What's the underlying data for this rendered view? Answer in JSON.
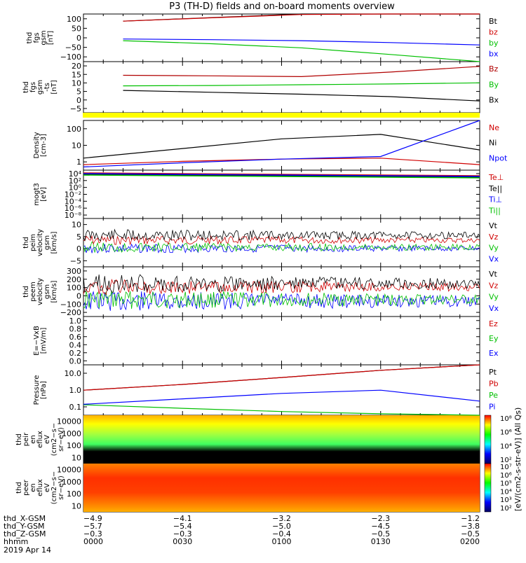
{
  "title": "P3 (TH-D) fields and on-board moments overview",
  "panels": [
    {
      "key": "fgs_gsm",
      "ylabel": [
        "thd",
        "fgs",
        "gsm",
        "[nT]"
      ],
      "yticks": [
        "100",
        "50",
        "0",
        "−50",
        "−100"
      ],
      "legend": [
        {
          "text": "Bt",
          "color": "#000000"
        },
        {
          "text": "bz",
          "color": "#d00000"
        },
        {
          "text": "by",
          "color": "#00c000"
        },
        {
          "text": "bx",
          "color": "#0000ff"
        }
      ]
    },
    {
      "key": "fgs_gse",
      "ylabel": [
        "thd",
        "fgs",
        "gsm",
        "-ts",
        "[nT]"
      ],
      "yticks": [
        "20",
        "15",
        "10",
        "5",
        "0",
        "−5"
      ],
      "legend": [
        {
          "text": "Bz",
          "color": "#b00000"
        },
        {
          "text": "By",
          "color": "#00c000"
        },
        {
          "text": "Bx",
          "color": "#000000"
        }
      ]
    },
    {
      "key": "density",
      "ylabel": [
        "Density",
        "[cm-3]"
      ],
      "yticks": [
        "100",
        "10",
        "1"
      ],
      "legend": [
        {
          "text": "Ne",
          "color": "#d00000"
        },
        {
          "text": "Ni",
          "color": "#000000"
        },
        {
          "text": "Npot",
          "color": "#0000ff"
        }
      ]
    },
    {
      "key": "temp",
      "ylabel": [
        "mogt3",
        "[eV]"
      ],
      "yticks": [
        "10⁴",
        "10²",
        "10⁰",
        "10⁻²",
        "10⁻⁴",
        "10⁻⁶",
        "10⁻⁸"
      ],
      "legend": [
        {
          "text": "Te⊥",
          "color": "#d00000"
        },
        {
          "text": "Te||",
          "color": "#000000"
        },
        {
          "text": "Ti⊥",
          "color": "#0000ff"
        },
        {
          "text": "Ti||",
          "color": "#00c000"
        }
      ]
    },
    {
      "key": "peim_vel",
      "ylabel": [
        "thd",
        "peim",
        "velocity",
        "gsm",
        "[km/s]"
      ],
      "yticks": [
        "10",
        "5",
        "0",
        "−5"
      ],
      "legend": [
        {
          "text": "Vt",
          "color": "#000000"
        },
        {
          "text": "Vz",
          "color": "#d00000"
        },
        {
          "text": "Vy",
          "color": "#00c000"
        },
        {
          "text": "Vx",
          "color": "#0000ff"
        }
      ]
    },
    {
      "key": "peem_vel",
      "ylabel": [
        "thd",
        "peem",
        "velocity",
        "gsm",
        "[km/s]"
      ],
      "yticks": [
        "300",
        "200",
        "100",
        "0",
        "−100",
        "−200"
      ],
      "legend": [
        {
          "text": "Vt",
          "color": "#000000"
        },
        {
          "text": "Vz",
          "color": "#d00000"
        },
        {
          "text": "Vy",
          "color": "#00c000"
        },
        {
          "text": "Vx",
          "color": "#0000ff"
        }
      ]
    },
    {
      "key": "efield",
      "ylabel": [
        "E=−VxB",
        "[mV/m]"
      ],
      "yticks": [
        "1.0",
        "0.8",
        "0.6",
        "0.4",
        "0.2",
        "0.0"
      ],
      "legend": [
        {
          "text": "Ez",
          "color": "#d00000"
        },
        {
          "text": "Ey",
          "color": "#00c000"
        },
        {
          "text": "Ex",
          "color": "#0000ff"
        }
      ]
    },
    {
      "key": "pressure",
      "ylabel": [
        "Pressure",
        "[nPa]"
      ],
      "yticks": [
        "10.0",
        "1.0",
        "0.1"
      ],
      "legend": [
        {
          "text": "Pt",
          "color": "#000000"
        },
        {
          "text": "Pb",
          "color": "#d00000"
        },
        {
          "text": "Pe",
          "color": "#00c000"
        },
        {
          "text": "Pi",
          "color": "#0000ff"
        }
      ]
    },
    {
      "key": "peir",
      "ylabel": [
        "thd",
        "peir",
        "en",
        "eflux",
        "eV",
        "(cm2−s−",
        "sr−eV)"
      ],
      "yticks": [
        "10000",
        "1000",
        "100",
        "10"
      ],
      "legend": []
    },
    {
      "key": "peer",
      "ylabel": [
        "thd",
        "peer",
        "en",
        "eflux",
        "eV",
        "(cm2−s−",
        "sr−eV)"
      ],
      "yticks": [
        "10000",
        "1000",
        "100",
        "10"
      ],
      "legend": []
    }
  ],
  "colorbars": [
    {
      "labels": [
        "10⁸",
        "10⁶",
        "10⁴",
        "10²"
      ]
    },
    {
      "labels": [
        "10⁷",
        "10⁶",
        "10⁵",
        "10⁴",
        "10³",
        "10²"
      ]
    }
  ],
  "colorbar_unit": "[eV/(cm2-s-str-eV)] (All Qs)",
  "xaxis": {
    "labels": [
      "thd_X-GSM",
      "thd_Y-GSM",
      "thd_Z-GSM",
      "hhmm",
      "2019 Apr 14"
    ],
    "rows": [
      [
        "−4.9",
        "−4.1",
        "−3.2",
        "−2.3",
        "−1.2"
      ],
      [
        "−5.7",
        "−5.4",
        "−5.0",
        "−4.5",
        "−3.8"
      ],
      [
        "−0.3",
        "−0.3",
        "−0.4",
        "−0.5",
        "−0.5"
      ],
      [
        "0000",
        "0030",
        "0100",
        "0130",
        "0200"
      ]
    ]
  },
  "chart_data": {
    "type": "line",
    "title": "P3 (TH-D) fields and on-board moments overview",
    "x": [
      "0000",
      "0030",
      "0100",
      "0130",
      "0200"
    ],
    "xlabel": "hhmm",
    "series": [
      {
        "name": "Bt",
        "values": [
          70,
          85,
          100,
          115,
          130
        ]
      },
      {
        "name": "bz",
        "values": [
          70,
          84,
          98,
          112,
          126
        ]
      },
      {
        "name": "by",
        "values": [
          -12,
          -25,
          -42,
          -70,
          -110
        ]
      },
      {
        "name": "bx",
        "values": [
          -5,
          -8,
          -12,
          -20,
          -30
        ]
      },
      {
        "name": "Bz",
        "values": [
          12.8,
          12.5,
          12.1,
          14.5,
          17.5
        ]
      },
      {
        "name": "By",
        "values": [
          7.2,
          7.4,
          7.8,
          8.2,
          8.8
        ]
      },
      {
        "name": "Bx",
        "values": [
          4.8,
          3.8,
          2.8,
          1.5,
          -0.8
        ]
      },
      {
        "name": "Ni",
        "values": [
          1.8,
          6,
          20,
          35,
          5
        ]
      },
      {
        "name": "Ne",
        "values": [
          0.8,
          1.2,
          1.6,
          1.8,
          0.8
        ]
      },
      {
        "name": "Npot",
        "values": [
          0.6,
          1.0,
          1.6,
          2.2,
          300
        ]
      },
      {
        "name": "Pt",
        "values": [
          1.2,
          2.5,
          6,
          15,
          40
        ]
      },
      {
        "name": "Pb",
        "values": [
          1.2,
          2.5,
          6,
          15,
          40
        ]
      },
      {
        "name": "Pe",
        "values": [
          0.19,
          0.12,
          0.08,
          0.06,
          0.03
        ]
      },
      {
        "name": "Pi",
        "values": [
          0.2,
          0.4,
          0.8,
          1.2,
          0.3
        ]
      }
    ],
    "panels": [
      "fgs_gsm",
      "fgs_gse",
      "density",
      "temp",
      "peim_vel",
      "peem_vel",
      "efield",
      "pressure",
      "peir",
      "peer"
    ],
    "grid": false
  }
}
